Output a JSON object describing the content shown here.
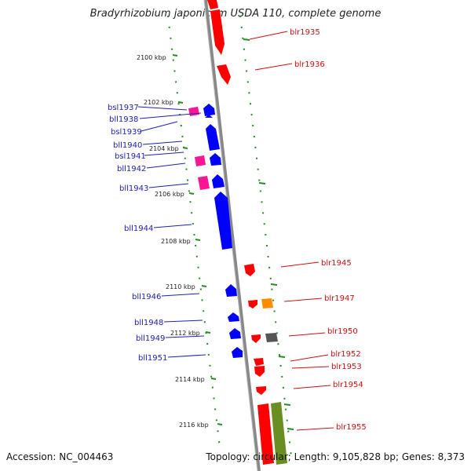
{
  "title": "Bradyrhizobium japonicum USDA 110, complete genome",
  "accession": "Accession: NC_004463",
  "stats": "Topology: circular; Length: 9,105,828 bp; Genes: 8,373",
  "colors": {
    "forward_gene": "#ff0000",
    "reverse_gene": "#0000ff",
    "small_rna_gene": "#ff1493",
    "orange_gene": "#ff8c00",
    "gray_gene": "#555555",
    "green_gene": "#6b8e23",
    "backbone": "#888888",
    "tick": "#228b22",
    "left_label": "#2020b0",
    "right_label": "#cc1111"
  },
  "ticks": [
    "2100 kbp",
    "2102 kbp",
    "2104 kbp",
    "2106 kbp",
    "2108 kbp",
    "2110 kbp",
    "2112 kbp",
    "2114 kbp",
    "2116 kbp"
  ],
  "left_labels": [
    "bsl1937",
    "bll1938",
    "bsl1939",
    "bll1940",
    "bsl1941",
    "bll1942",
    "bll1943",
    "bll1944",
    "bll1946",
    "bll1948",
    "bll1949",
    "bll1951"
  ],
  "right_labels": [
    "blr1935",
    "blr1936",
    "blr1945",
    "blr1947",
    "blr1950",
    "blr1952",
    "blr1953",
    "blr1954",
    "blr1955"
  ]
}
